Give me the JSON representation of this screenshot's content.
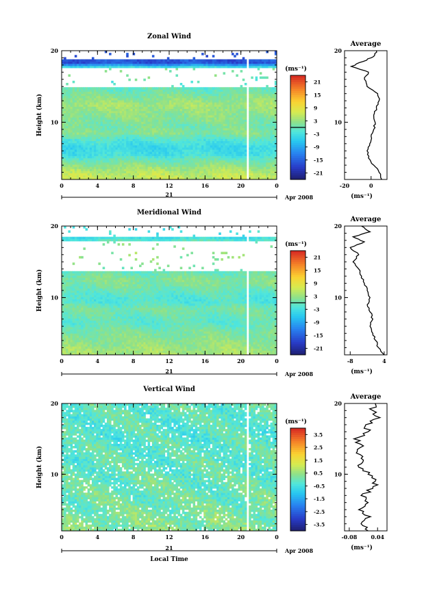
{
  "chart_data": [
    {
      "type": "heatmap",
      "title": "Zonal Wind",
      "ylabel": "Height (km)",
      "xlabel": "",
      "y_tick_labels": [
        "20",
        "10"
      ],
      "x_tick_labels": [
        "0",
        "4",
        "8",
        "12",
        "16",
        "20",
        "0"
      ],
      "date_label": "21",
      "month_label": "Apr 2008",
      "xlim_hours": [
        0,
        24
      ],
      "ylim_km": [
        2,
        20
      ],
      "colorbar": {
        "unit": "(ms⁻¹)",
        "tick_labels": [
          "21",
          "15",
          "9",
          "3",
          "-3",
          "-9",
          "-15",
          "-21"
        ],
        "range": [
          -24,
          24
        ],
        "zero_line": 0
      },
      "field": {
        "mean_rows_by_height_km": [
          {
            "h": 2.5,
            "v": 6
          },
          {
            "h": 3.5,
            "v": 4
          },
          {
            "h": 4.5,
            "v": 1
          },
          {
            "h": 5.5,
            "v": -3
          },
          {
            "h": 6.5,
            "v": -4
          },
          {
            "h": 7.5,
            "v": -2
          },
          {
            "h": 8.5,
            "v": 2
          },
          {
            "h": 9.5,
            "v": 1
          },
          {
            "h": 10.5,
            "v": 2
          },
          {
            "h": 11.5,
            "v": 3
          },
          {
            "h": 12.5,
            "v": 4
          },
          {
            "h": 13.5,
            "v": 2
          },
          {
            "h": 14.5,
            "v": 0
          },
          {
            "h": 15.5,
            "v": -1
          },
          {
            "h": 16.5,
            "v": 1
          },
          {
            "h": 17.5,
            "v": 2
          },
          {
            "h": 18.3,
            "v": -16
          }
        ],
        "blank_heights_km": [
          [
            14.8,
            17.6
          ],
          [
            18.8,
            20
          ]
        ],
        "blank_times_h": [
          [
            20.6,
            20.9
          ]
        ]
      },
      "average_profile": {
        "title": "Average",
        "unit": "(ms⁻¹)",
        "x_tick_labels": [
          "-20",
          "0"
        ],
        "xlim": [
          -20,
          12
        ],
        "y_tick_labels": [
          "20",
          "10"
        ],
        "profile": [
          {
            "h": 2,
            "v": 8
          },
          {
            "h": 3,
            "v": 6
          },
          {
            "h": 4,
            "v": 2
          },
          {
            "h": 5,
            "v": -2
          },
          {
            "h": 6,
            "v": -3
          },
          {
            "h": 7,
            "v": -1
          },
          {
            "h": 8,
            "v": 0
          },
          {
            "h": 9,
            "v": 2
          },
          {
            "h": 10,
            "v": 3
          },
          {
            "h": 11,
            "v": 2
          },
          {
            "h": 12,
            "v": 4
          },
          {
            "h": 13,
            "v": 6
          },
          {
            "h": 14,
            "v": 5
          },
          {
            "h": 15,
            "v": -3
          },
          {
            "h": 16,
            "v": -5
          },
          {
            "h": 17,
            "v": -2
          },
          {
            "h": 17.8,
            "v": -15
          },
          {
            "h": 18.5,
            "v": -6
          },
          {
            "h": 19.2,
            "v": 2
          },
          {
            "h": 20,
            "v": 4
          }
        ]
      }
    },
    {
      "type": "heatmap",
      "title": "Meridional Wind",
      "ylabel": "Height (km)",
      "xlabel": "",
      "y_tick_labels": [
        "20",
        "10"
      ],
      "x_tick_labels": [
        "0",
        "4",
        "8",
        "12",
        "16",
        "20",
        "0"
      ],
      "date_label": "21",
      "month_label": "Apr 2008",
      "xlim_hours": [
        0,
        24
      ],
      "ylim_km": [
        2,
        20
      ],
      "colorbar": {
        "unit": "(ms⁻¹)",
        "tick_labels": [
          "21",
          "15",
          "9",
          "3",
          "-3",
          "-9",
          "-15",
          "-21"
        ],
        "range": [
          -24,
          24
        ],
        "zero_line": 0
      },
      "field": {
        "mean_rows_by_height_km": [
          {
            "h": 2.5,
            "v": 4
          },
          {
            "h": 3.5,
            "v": 3
          },
          {
            "h": 4.5,
            "v": 2
          },
          {
            "h": 5.5,
            "v": 1
          },
          {
            "h": 6.5,
            "v": -1
          },
          {
            "h": 7.5,
            "v": 0
          },
          {
            "h": 8.5,
            "v": 1
          },
          {
            "h": 9.5,
            "v": -2
          },
          {
            "h": 10.5,
            "v": -1
          },
          {
            "h": 11.5,
            "v": 1
          },
          {
            "h": 12.5,
            "v": 2
          },
          {
            "h": 13.5,
            "v": 0
          },
          {
            "h": 16.2,
            "v": 3
          },
          {
            "h": 17.5,
            "v": 2
          },
          {
            "h": 18.3,
            "v": -3
          }
        ],
        "blank_heights_km": [
          [
            13.8,
            17.8
          ],
          [
            18.6,
            20
          ]
        ],
        "blank_times_h": [
          [
            20.6,
            20.9
          ]
        ]
      },
      "average_profile": {
        "title": "Average",
        "unit": "(ms⁻¹)",
        "x_tick_labels": [
          "-8",
          "4"
        ],
        "xlim": [
          -10,
          5
        ],
        "y_tick_labels": [
          "20",
          "10"
        ],
        "profile": [
          {
            "h": 2,
            "v": 4
          },
          {
            "h": 3,
            "v": 2
          },
          {
            "h": 4,
            "v": 1
          },
          {
            "h": 5,
            "v": 0
          },
          {
            "h": 6,
            "v": -1
          },
          {
            "h": 7,
            "v": 0
          },
          {
            "h": 8,
            "v": -1
          },
          {
            "h": 9,
            "v": -2
          },
          {
            "h": 10,
            "v": -1
          },
          {
            "h": 11,
            "v": -2
          },
          {
            "h": 12,
            "v": -3
          },
          {
            "h": 13,
            "v": -4
          },
          {
            "h": 14,
            "v": -5
          },
          {
            "h": 15,
            "v": -7
          },
          {
            "h": 16,
            "v": -5
          },
          {
            "h": 17,
            "v": -8
          },
          {
            "h": 17.8,
            "v": -3
          },
          {
            "h": 18.5,
            "v": -7
          },
          {
            "h": 19.2,
            "v": -1
          },
          {
            "h": 20,
            "v": -4
          }
        ]
      }
    },
    {
      "type": "heatmap",
      "title": "Vertical Wind",
      "ylabel": "Height (km)",
      "xlabel": "Local Time",
      "y_tick_labels": [
        "20",
        "10"
      ],
      "x_tick_labels": [
        "0",
        "4",
        "8",
        "12",
        "16",
        "20",
        "0"
      ],
      "date_label": "21",
      "month_label": "Apr 2008",
      "xlim_hours": [
        0,
        24
      ],
      "ylim_km": [
        2,
        20
      ],
      "colorbar": {
        "unit": "(ms⁻¹)",
        "tick_labels": [
          "3.5",
          "2.5",
          "1.5",
          "0.5",
          "-0.5",
          "-1.5",
          "-2.5",
          "-3.5"
        ],
        "range": [
          -4,
          4
        ],
        "zero_line": null
      },
      "field": {
        "mean_rows_by_height_km": [
          {
            "h": 3,
            "v": 0.3
          },
          {
            "h": 6,
            "v": 0.1
          },
          {
            "h": 9,
            "v": 0.0
          },
          {
            "h": 12,
            "v": -0.1
          },
          {
            "h": 15,
            "v": -0.2
          },
          {
            "h": 18,
            "v": -0.1
          }
        ],
        "blank_heights_km": [],
        "blank_times_h": [
          [
            20.6,
            20.9
          ]
        ]
      },
      "average_profile": {
        "title": "Average",
        "unit": "(ms⁻¹)",
        "x_tick_labels": [
          "-0.08",
          "0.04"
        ],
        "xlim": [
          -0.1,
          0.08
        ],
        "y_tick_labels": [
          "20",
          "10"
        ],
        "profile": [
          {
            "h": 2,
            "v": 0.0
          },
          {
            "h": 3,
            "v": -0.03
          },
          {
            "h": 4,
            "v": 0.01
          },
          {
            "h": 5,
            "v": -0.04
          },
          {
            "h": 6,
            "v": 0.0
          },
          {
            "h": 7,
            "v": -0.03
          },
          {
            "h": 8,
            "v": 0.02
          },
          {
            "h": 9,
            "v": 0.03
          },
          {
            "h": 10,
            "v": 0.0
          },
          {
            "h": 11,
            "v": -0.04
          },
          {
            "h": 12,
            "v": -0.02
          },
          {
            "h": 13,
            "v": -0.05
          },
          {
            "h": 14,
            "v": -0.02
          },
          {
            "h": 15,
            "v": -0.06
          },
          {
            "h": 16,
            "v": 0.0
          },
          {
            "h": 17,
            "v": -0.01
          },
          {
            "h": 18,
            "v": 0.05
          },
          {
            "h": 19,
            "v": 0.02
          },
          {
            "h": 20,
            "v": 0.03
          }
        ]
      }
    }
  ]
}
